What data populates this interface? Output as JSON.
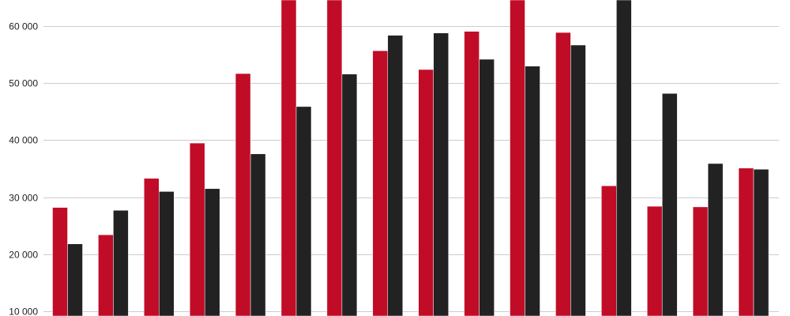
{
  "chart_data": {
    "type": "bar",
    "categories": [
      "",
      "",
      "",
      "",
      "",
      "",
      "",
      "",
      "",
      "",
      "",
      "",
      "",
      "",
      "",
      ""
    ],
    "series": [
      {
        "color": "#c10c27",
        "values": [
          28200,
          23400,
          33300,
          39500,
          51700,
          65000,
          65000,
          55700,
          52400,
          59100,
          65000,
          58900,
          32000,
          28400,
          28300,
          35100
        ]
      },
      {
        "color": "#222222",
        "values": [
          21800,
          27700,
          31000,
          31500,
          37600,
          45900,
          51600,
          58400,
          58800,
          54200,
          53000,
          56700,
          65000,
          48200,
          35900,
          34900
        ]
      }
    ],
    "y_ticks": [
      {
        "value": 10000,
        "label": "10 000"
      },
      {
        "value": 20000,
        "label": "20 000"
      },
      {
        "value": 30000,
        "label": "30 000"
      },
      {
        "value": 40000,
        "label": "40 000"
      },
      {
        "value": 50000,
        "label": "50 000"
      },
      {
        "value": 60000,
        "label": "60 000"
      }
    ],
    "ylim": [
      9150,
      64600
    ],
    "grid": true,
    "legend": "none",
    "title": "",
    "xlabel": "",
    "ylabel": ""
  }
}
